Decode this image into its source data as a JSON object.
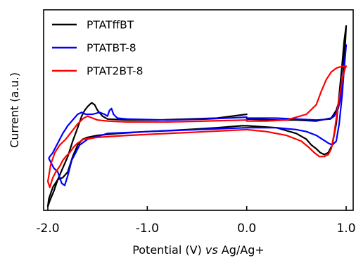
{
  "chart_data": {
    "type": "line",
    "xlabel_prefix": "Potential (V) ",
    "xlabel_italic": "vs",
    "xlabel_suffix": " Ag/Ag+",
    "ylabel": "Current (a.u.)",
    "xlim": [
      -2.0,
      1.0
    ],
    "ylim": [
      0,
      1
    ],
    "xticks": [
      -2.0,
      -1.0,
      0.0,
      1.0
    ],
    "xtick_labels": [
      "-2.0",
      "-1.0",
      "0.0",
      "1.0"
    ],
    "grid": false,
    "legend_position": "top-left",
    "series": [
      {
        "name": "PTATffBT",
        "color": "#000000",
        "x": [
          0.0,
          -0.3,
          -0.6,
          -0.9,
          -1.2,
          -1.4,
          -1.45,
          -1.5,
          -1.53,
          -1.56,
          -1.6,
          -1.63,
          -1.66,
          -1.7,
          -1.75,
          -1.8,
          -1.85,
          -1.9,
          -1.94,
          -1.98,
          -2.0,
          -1.99,
          -1.95,
          -1.9,
          -1.85,
          -1.8,
          -1.75,
          -1.7,
          -1.65,
          -1.6,
          -1.5,
          -1.3,
          -1.0,
          -0.6,
          -0.3,
          -0.05,
          0.0,
          0.3,
          0.5,
          0.6,
          0.65,
          0.7,
          0.74,
          0.78,
          0.82,
          0.86,
          0.9,
          0.93,
          0.96,
          0.98,
          1.0,
          0.99,
          0.97,
          0.95,
          0.9,
          0.85,
          0.7,
          0.5,
          0.3,
          0.0
        ],
        "y": [
          0.5,
          0.48,
          0.475,
          0.47,
          0.47,
          0.475,
          0.49,
          0.52,
          0.55,
          0.56,
          0.54,
          0.52,
          0.49,
          0.43,
          0.36,
          0.28,
          0.22,
          0.16,
          0.1,
          0.05,
          0.02,
          0.06,
          0.12,
          0.16,
          0.17,
          0.2,
          0.28,
          0.34,
          0.37,
          0.38,
          0.39,
          0.4,
          0.41,
          0.42,
          0.43,
          0.44,
          0.44,
          0.43,
          0.4,
          0.37,
          0.34,
          0.32,
          0.3,
          0.29,
          0.3,
          0.34,
          0.45,
          0.6,
          0.76,
          0.88,
          0.96,
          0.86,
          0.72,
          0.6,
          0.52,
          0.48,
          0.465,
          0.47,
          0.47,
          0.475
        ]
      },
      {
        "name": "PTATBT-8",
        "color": "#0000ff",
        "x": [
          0.0,
          -0.4,
          -0.8,
          -1.2,
          -1.3,
          -1.34,
          -1.36,
          -1.38,
          -1.4,
          -1.43,
          -1.48,
          -1.55,
          -1.62,
          -1.66,
          -1.7,
          -1.75,
          -1.8,
          -1.85,
          -1.9,
          -1.95,
          -1.98,
          -1.99,
          -1.97,
          -1.94,
          -1.9,
          -1.86,
          -1.83,
          -1.8,
          -1.76,
          -1.72,
          -1.68,
          -1.6,
          -1.4,
          -1.0,
          -0.5,
          0.0,
          0.3,
          0.5,
          0.6,
          0.7,
          0.76,
          0.82,
          0.86,
          0.9,
          0.93,
          0.96,
          0.98,
          1.0,
          0.99,
          0.97,
          0.95,
          0.92,
          0.88,
          0.84,
          0.7,
          0.5,
          0.3,
          0.0
        ],
        "y": [
          0.485,
          0.475,
          0.47,
          0.475,
          0.48,
          0.5,
          0.53,
          0.52,
          0.49,
          0.5,
          0.51,
          0.5,
          0.5,
          0.51,
          0.5,
          0.47,
          0.44,
          0.4,
          0.35,
          0.3,
          0.28,
          0.27,
          0.25,
          0.22,
          0.2,
          0.14,
          0.13,
          0.18,
          0.26,
          0.3,
          0.34,
          0.37,
          0.4,
          0.41,
          0.42,
          0.43,
          0.43,
          0.42,
          0.41,
          0.39,
          0.37,
          0.35,
          0.34,
          0.36,
          0.45,
          0.6,
          0.74,
          0.86,
          0.8,
          0.7,
          0.6,
          0.53,
          0.49,
          0.475,
          0.47,
          0.475,
          0.48,
          0.48
        ]
      },
      {
        "name": "PTAT2BT-8",
        "color": "#ff0000",
        "x": [
          0.0,
          -0.4,
          -0.8,
          -1.2,
          -1.4,
          -1.5,
          -1.55,
          -1.6,
          -1.64,
          -1.7,
          -1.76,
          -1.82,
          -1.88,
          -1.93,
          -1.97,
          -2.0,
          -1.98,
          -1.95,
          -1.92,
          -1.88,
          -1.85,
          -1.82,
          -1.78,
          -1.74,
          -1.7,
          -1.64,
          -1.5,
          -1.2,
          -0.8,
          -0.4,
          0.0,
          0.2,
          0.4,
          0.55,
          0.62,
          0.68,
          0.73,
          0.78,
          0.82,
          0.85,
          0.88,
          0.92,
          0.96,
          0.99,
          1.0,
          0.96,
          0.9,
          0.85,
          0.8,
          0.75,
          0.7,
          0.6,
          0.4,
          0.2,
          0.0
        ],
        "y": [
          0.47,
          0.465,
          0.46,
          0.46,
          0.465,
          0.47,
          0.48,
          0.49,
          0.48,
          0.45,
          0.41,
          0.37,
          0.34,
          0.3,
          0.24,
          0.15,
          0.12,
          0.17,
          0.2,
          0.23,
          0.26,
          0.28,
          0.3,
          0.33,
          0.35,
          0.37,
          0.38,
          0.39,
          0.4,
          0.41,
          0.42,
          0.41,
          0.39,
          0.36,
          0.33,
          0.3,
          0.28,
          0.28,
          0.29,
          0.32,
          0.4,
          0.55,
          0.68,
          0.74,
          0.75,
          0.75,
          0.74,
          0.72,
          0.68,
          0.62,
          0.55,
          0.5,
          0.47,
          0.465,
          0.465
        ]
      }
    ]
  }
}
